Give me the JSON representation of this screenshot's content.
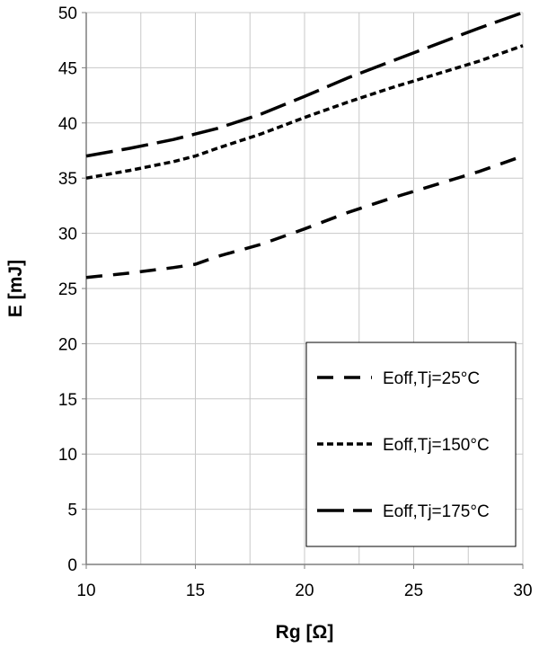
{
  "chart_data": {
    "type": "line",
    "xlabel": "Rg [Ω]",
    "ylabel": "E [mJ]",
    "xlim": [
      10,
      30
    ],
    "ylim": [
      0,
      50
    ],
    "x_ticks": [
      10,
      15,
      20,
      25,
      30
    ],
    "y_ticks": [
      0,
      5,
      10,
      15,
      20,
      25,
      30,
      35,
      40,
      45,
      50
    ],
    "x_minor_grid": [
      12.5,
      17.5,
      22.5,
      27.5
    ],
    "grid": true,
    "legend_position": "bottom-right",
    "series": [
      {
        "name": "Eoff,Tj=25°C",
        "dash": "long-dash",
        "color": "#000000",
        "x": [
          10,
          12,
          14,
          15,
          16,
          18,
          20,
          22,
          24,
          26,
          28,
          30
        ],
        "y": [
          26,
          26.4,
          26.9,
          27.2,
          27.9,
          29.0,
          30.4,
          31.9,
          33.2,
          34.4,
          35.6,
          37.0
        ]
      },
      {
        "name": "Eoff,Tj=150°C",
        "dash": "short-dash",
        "color": "#000000",
        "x": [
          10,
          12,
          14,
          15,
          16,
          18,
          20,
          22,
          24,
          26,
          28,
          30
        ],
        "y": [
          35,
          35.7,
          36.5,
          37.0,
          37.7,
          39.0,
          40.5,
          41.9,
          43.2,
          44.4,
          45.6,
          47.0
        ]
      },
      {
        "name": "Eoff,Tj=175°C",
        "dash": "very-long-dash",
        "color": "#000000",
        "x": [
          10,
          12,
          14,
          15,
          16,
          18,
          20,
          22,
          24,
          26,
          28,
          30
        ],
        "y": [
          37,
          37.7,
          38.5,
          39.0,
          39.5,
          40.8,
          42.4,
          44.1,
          45.6,
          47.1,
          48.6,
          50.0
        ]
      }
    ]
  }
}
